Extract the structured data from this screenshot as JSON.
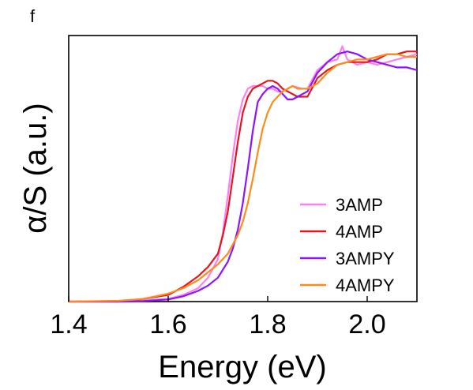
{
  "panel_label": "f",
  "chart_data": {
    "type": "line",
    "title": "",
    "xlabel": "Energy (eV)",
    "ylabel": "α/S (a.u.)",
    "xlim": [
      1.4,
      2.1
    ],
    "ylim": [
      0,
      1.0
    ],
    "xticks": [
      "1.4",
      "1.6",
      "1.8",
      "2.0"
    ],
    "xtick_values": [
      1.4,
      1.6,
      1.8,
      2.0
    ],
    "yticks_shown": false,
    "grid": false,
    "legend_position": "bottom-right",
    "series": [
      {
        "name": "3AMP",
        "color": "#ff7ff0",
        "x": [
          1.4,
          1.5,
          1.55,
          1.6,
          1.63,
          1.66,
          1.68,
          1.7,
          1.71,
          1.72,
          1.73,
          1.74,
          1.75,
          1.76,
          1.77,
          1.78,
          1.79,
          1.8,
          1.81,
          1.82,
          1.83,
          1.84,
          1.85,
          1.87,
          1.88,
          1.9,
          1.92,
          1.94,
          1.95,
          1.96,
          1.98,
          2.0,
          2.02,
          2.04,
          2.06,
          2.08,
          2.1
        ],
        "values": [
          0.0,
          0.0,
          0.005,
          0.01,
          0.025,
          0.05,
          0.09,
          0.16,
          0.26,
          0.4,
          0.55,
          0.68,
          0.76,
          0.8,
          0.81,
          0.81,
          0.81,
          0.8,
          0.8,
          0.79,
          0.79,
          0.8,
          0.81,
          0.8,
          0.8,
          0.87,
          0.9,
          0.91,
          0.96,
          0.91,
          0.89,
          0.9,
          0.89,
          0.9,
          0.91,
          0.92,
          0.93
        ]
      },
      {
        "name": "4AMP",
        "color": "#e8141e",
        "x": [
          1.4,
          1.5,
          1.55,
          1.6,
          1.63,
          1.66,
          1.68,
          1.7,
          1.71,
          1.72,
          1.73,
          1.74,
          1.75,
          1.76,
          1.77,
          1.78,
          1.79,
          1.8,
          1.81,
          1.82,
          1.83,
          1.84,
          1.85,
          1.86,
          1.87,
          1.88,
          1.9,
          1.92,
          1.94,
          1.96,
          1.98,
          2.0,
          2.02,
          2.04,
          2.06,
          2.08,
          2.1
        ],
        "values": [
          0.0,
          0.0,
          0.01,
          0.025,
          0.055,
          0.095,
          0.13,
          0.18,
          0.25,
          0.34,
          0.47,
          0.6,
          0.71,
          0.77,
          0.8,
          0.81,
          0.82,
          0.83,
          0.83,
          0.82,
          0.8,
          0.79,
          0.78,
          0.77,
          0.77,
          0.77,
          0.84,
          0.87,
          0.89,
          0.9,
          0.9,
          0.9,
          0.91,
          0.93,
          0.93,
          0.94,
          0.94
        ]
      },
      {
        "name": "3AMPY",
        "color": "#8c14ff",
        "x": [
          1.4,
          1.5,
          1.55,
          1.6,
          1.63,
          1.66,
          1.68,
          1.7,
          1.72,
          1.73,
          1.74,
          1.75,
          1.76,
          1.77,
          1.78,
          1.79,
          1.8,
          1.81,
          1.82,
          1.83,
          1.84,
          1.85,
          1.86,
          1.88,
          1.9,
          1.92,
          1.94,
          1.96,
          1.98,
          2.0,
          2.02,
          2.04,
          2.06,
          2.08,
          2.1
        ],
        "values": [
          0.0,
          0.0,
          0.002,
          0.008,
          0.02,
          0.04,
          0.06,
          0.09,
          0.15,
          0.2,
          0.27,
          0.37,
          0.5,
          0.64,
          0.75,
          0.78,
          0.8,
          0.81,
          0.8,
          0.78,
          0.76,
          0.76,
          0.77,
          0.79,
          0.86,
          0.9,
          0.93,
          0.94,
          0.93,
          0.91,
          0.9,
          0.89,
          0.88,
          0.88,
          0.87
        ]
      },
      {
        "name": "4AMPY",
        "color": "#ff8c1a",
        "x": [
          1.4,
          1.5,
          1.55,
          1.6,
          1.63,
          1.66,
          1.68,
          1.7,
          1.72,
          1.74,
          1.75,
          1.76,
          1.77,
          1.78,
          1.79,
          1.8,
          1.81,
          1.82,
          1.83,
          1.84,
          1.85,
          1.86,
          1.88,
          1.9,
          1.92,
          1.94,
          1.96,
          1.98,
          2.0,
          2.02,
          2.04,
          2.06,
          2.08,
          2.1
        ],
        "values": [
          0.0,
          0.003,
          0.01,
          0.03,
          0.05,
          0.08,
          0.11,
          0.14,
          0.18,
          0.25,
          0.3,
          0.37,
          0.46,
          0.56,
          0.65,
          0.71,
          0.75,
          0.77,
          0.79,
          0.8,
          0.81,
          0.8,
          0.8,
          0.82,
          0.86,
          0.89,
          0.9,
          0.91,
          0.91,
          0.92,
          0.93,
          0.93,
          0.92,
          0.92
        ]
      }
    ]
  }
}
